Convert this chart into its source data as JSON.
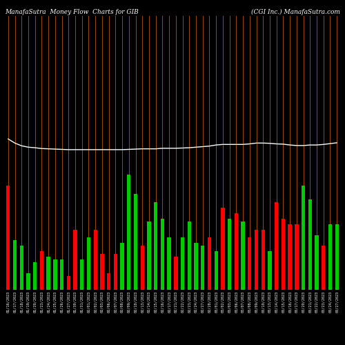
{
  "title_left": "ManafaSutra  Money Flow  Charts for GIB",
  "title_right": "(CGI Inc.) ManafaSutra.com",
  "bg_color": "#000000",
  "bar_colors": [
    "#ff0000",
    "#00cc00",
    "#00cc00",
    "#00cc00",
    "#00cc00",
    "#ff0000",
    "#00cc00",
    "#00cc00",
    "#00cc00",
    "#ff0000",
    "#ff0000",
    "#00cc00",
    "#00cc00",
    "#ff0000",
    "#ff0000",
    "#ff0000",
    "#ff0000",
    "#00cc00",
    "#00cc00",
    "#00cc00",
    "#ff0000",
    "#00cc00",
    "#00cc00",
    "#00cc00",
    "#00cc00",
    "#ff0000",
    "#00cc00",
    "#00cc00",
    "#00cc00",
    "#00cc00",
    "#ff0000",
    "#00cc00",
    "#ff0000",
    "#00cc00",
    "#ff0000",
    "#00cc00",
    "#ff0000",
    "#ff0000",
    "#ff0000",
    "#00cc00",
    "#ff0000",
    "#ff0000",
    "#ff0000",
    "#ff0000",
    "#00cc00",
    "#00cc00",
    "#00cc00",
    "#ff0000",
    "#00cc00",
    "#00cc00"
  ],
  "bar_heights": [
    0.38,
    0.18,
    0.16,
    0.06,
    0.1,
    0.14,
    0.12,
    0.11,
    0.11,
    0.05,
    0.22,
    0.11,
    0.19,
    0.22,
    0.13,
    0.06,
    0.13,
    0.17,
    0.42,
    0.35,
    0.16,
    0.25,
    0.32,
    0.26,
    0.19,
    0.12,
    0.19,
    0.25,
    0.17,
    0.16,
    0.19,
    0.14,
    0.3,
    0.26,
    0.28,
    0.25,
    0.19,
    0.22,
    0.22,
    0.14,
    0.32,
    0.26,
    0.24,
    0.24,
    0.38,
    0.33,
    0.2,
    0.16,
    0.24,
    0.24
  ],
  "orange_line_color": "#b35900",
  "white_line_color": "#ffffff",
  "white_line_y": [
    0.55,
    0.535,
    0.525,
    0.52,
    0.518,
    0.515,
    0.514,
    0.513,
    0.512,
    0.511,
    0.511,
    0.511,
    0.511,
    0.511,
    0.511,
    0.511,
    0.511,
    0.511,
    0.512,
    0.513,
    0.514,
    0.514,
    0.514,
    0.516,
    0.516,
    0.516,
    0.517,
    0.518,
    0.52,
    0.522,
    0.524,
    0.528,
    0.53,
    0.53,
    0.53,
    0.53,
    0.532,
    0.535,
    0.535,
    0.534,
    0.532,
    0.531,
    0.528,
    0.526,
    0.526,
    0.528,
    0.528,
    0.53,
    0.533,
    0.536
  ],
  "x_labels": [
    "01/16/2023",
    "01/17/2023",
    "01/18/2023",
    "01/19/2023",
    "01/20/2023",
    "01/23/2023",
    "01/24/2023",
    "01/25/2023",
    "01/26/2023",
    "01/27/2023",
    "01/30/2023",
    "01/31/2023",
    "02/01/2023",
    "02/02/2023",
    "02/03/2023",
    "02/06/2023",
    "02/07/2023",
    "02/08/2023",
    "02/09/2023",
    "02/10/2023",
    "02/13/2023",
    "02/14/2023",
    "02/15/2023",
    "02/16/2023",
    "02/17/2023",
    "02/21/2023",
    "02/22/2023",
    "02/23/2023",
    "02/24/2023",
    "02/27/2023",
    "02/28/2023",
    "03/01/2023",
    "03/02/2023",
    "03/03/2023",
    "03/06/2023",
    "03/07/2023",
    "03/08/2023",
    "03/09/2023",
    "03/10/2023",
    "03/13/2023",
    "03/14/2023",
    "03/15/2023",
    "03/16/2023",
    "03/17/2023",
    "03/20/2023",
    "03/21/2023",
    "03/22/2023",
    "03/23/2023",
    "03/24/2023",
    "03/27/2023"
  ],
  "title_fontsize": 6.5,
  "label_fontsize": 3.8,
  "ylim": [
    0,
    1.0
  ],
  "bar_width": 0.55
}
